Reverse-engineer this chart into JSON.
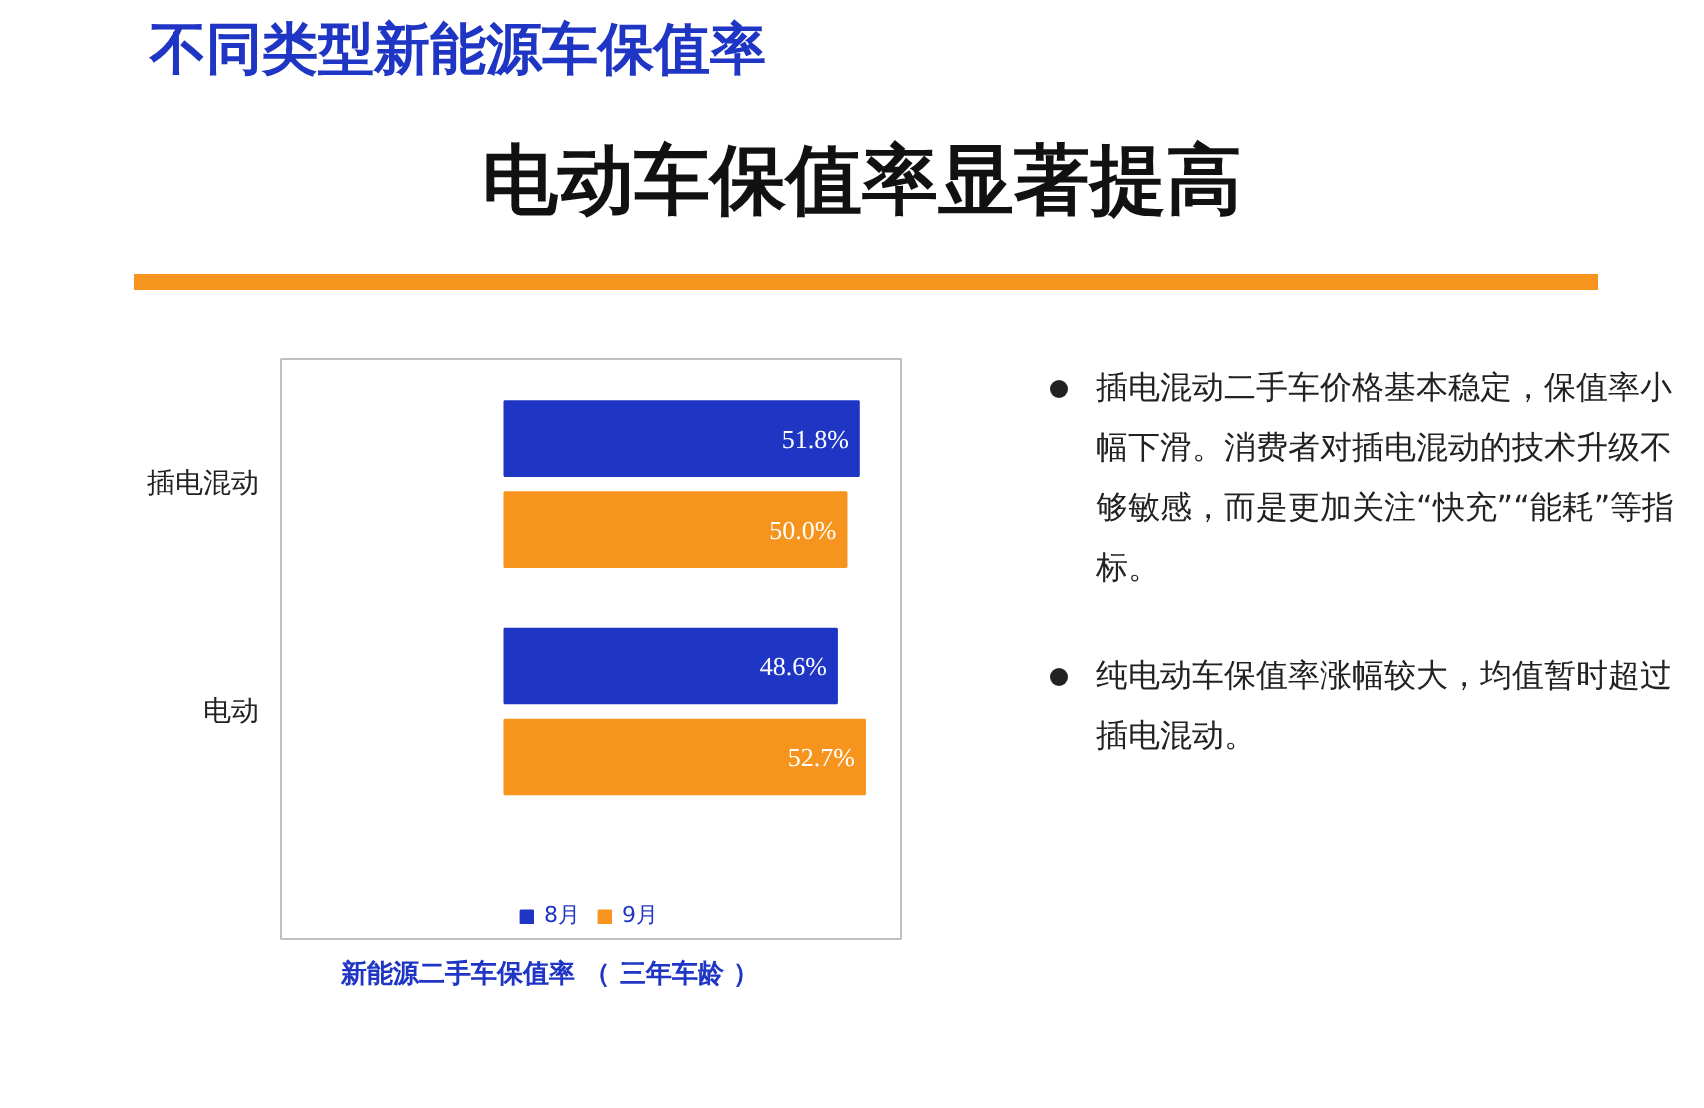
{
  "chart_data": {
    "type": "bar",
    "orientation": "horizontal",
    "title": "新能源二手车保值率 （ 三年车龄 ）",
    "categories": [
      "插电混动",
      "电动"
    ],
    "series": [
      {
        "name": "8月",
        "color": "#1f35c4",
        "values": [
          51.8,
          48.6
        ],
        "value_labels": [
          "51.8%",
          "48.6%"
        ]
      },
      {
        "name": "9月",
        "color": "#f7941d",
        "values": [
          50.0,
          52.7
        ],
        "value_labels": [
          "50.0%",
          "52.7%"
        ]
      }
    ],
    "legend": "bottom",
    "grid": false,
    "tick_labels": "y",
    "annotations": [
      "不同类型新能源车保值率",
      "电动车保值率显著提高",
      "插电混动二手车价格基本稳定，保值率小幅下滑。消费者对插电混动的技术升级不够敏感，而是更加关注“快充”“能耗”等指标。",
      "纯电动车保值率涨幅较大，均值暂时超过插电混动。"
    ]
  }
}
